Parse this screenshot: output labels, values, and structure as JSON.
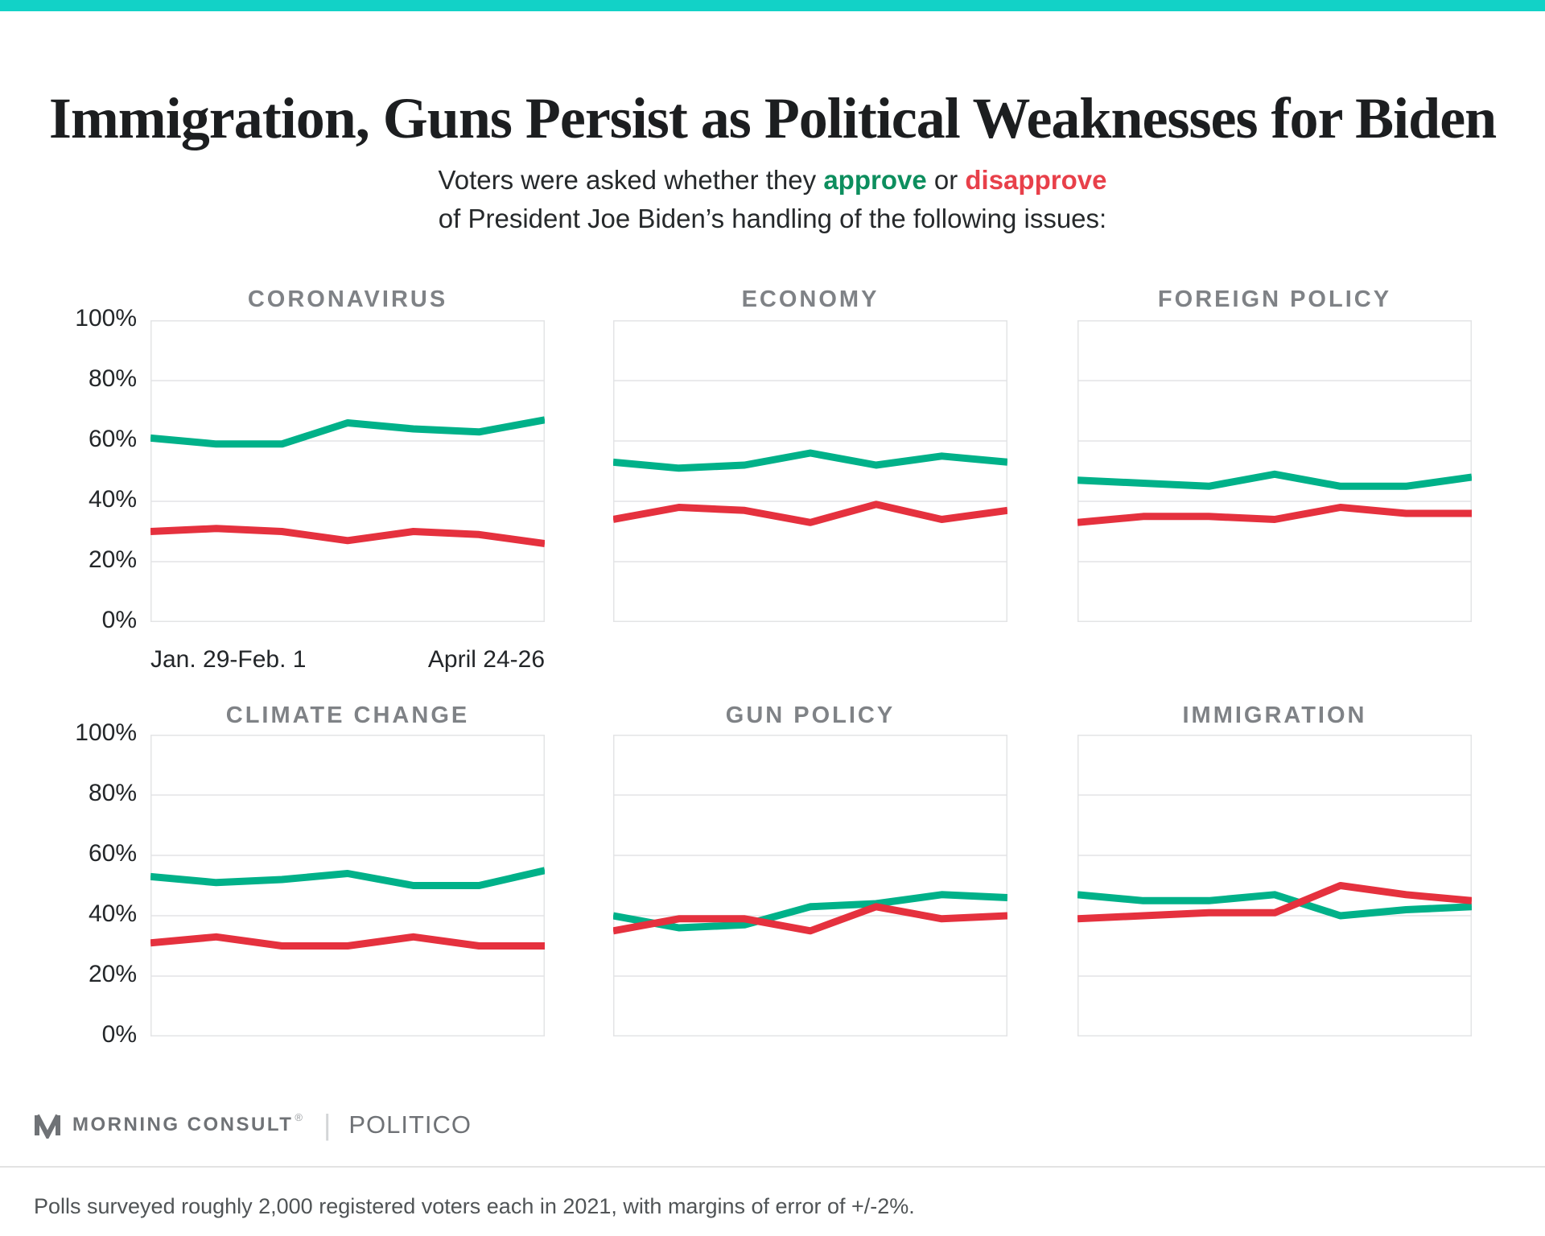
{
  "topbar_color": "#12d2c7",
  "title": "Immigration, Guns Persist as Political Weaknesses for Biden",
  "subtitle": {
    "line1_pre": "Voters were asked whether they ",
    "approve_word": "approve",
    "line1_mid": " or ",
    "disapprove_word": "disapprove",
    "line2": "of President Joe Biden’s handling of the following issues:"
  },
  "colors": {
    "approve": "#00b189",
    "disapprove": "#e5313e",
    "grid": "#e3e4e6",
    "chart_title": "#7f8286",
    "accent_bar": "#12d2c7"
  },
  "axes": {
    "y_ticks": [
      "100%",
      "80%",
      "60%",
      "40%",
      "20%",
      "0%"
    ],
    "x_tick_labels": [
      "Jan. 29-Feb. 1",
      "April 24-26"
    ]
  },
  "chart_data": [
    {
      "type": "line",
      "title": "CORONAVIRUS",
      "row": 0,
      "col": 0,
      "n_points": 7,
      "ylim": [
        0,
        100
      ],
      "grid": true,
      "y_tick_labels": [
        "100%",
        "80%",
        "60%",
        "40%",
        "20%",
        "0%"
      ],
      "x_tick_labels": [
        "Jan. 29-Feb. 1",
        "April 24-26"
      ],
      "series": [
        {
          "name": "approve",
          "values": [
            61,
            59,
            59,
            66,
            64,
            63,
            67
          ]
        },
        {
          "name": "disapprove",
          "values": [
            30,
            31,
            30,
            27,
            30,
            29,
            26
          ]
        }
      ]
    },
    {
      "type": "line",
      "title": "ECONOMY",
      "row": 0,
      "col": 1,
      "n_points": 7,
      "ylim": [
        0,
        100
      ],
      "grid": true,
      "series": [
        {
          "name": "approve",
          "values": [
            53,
            51,
            52,
            56,
            52,
            55,
            53
          ]
        },
        {
          "name": "disapprove",
          "values": [
            34,
            38,
            37,
            33,
            39,
            34,
            37
          ]
        }
      ]
    },
    {
      "type": "line",
      "title": "FOREIGN POLICY",
      "row": 0,
      "col": 2,
      "n_points": 7,
      "ylim": [
        0,
        100
      ],
      "grid": true,
      "series": [
        {
          "name": "approve",
          "values": [
            47,
            46,
            45,
            49,
            45,
            45,
            48
          ]
        },
        {
          "name": "disapprove",
          "values": [
            33,
            35,
            35,
            34,
            38,
            36,
            36
          ]
        }
      ]
    },
    {
      "type": "line",
      "title": "CLIMATE CHANGE",
      "row": 1,
      "col": 0,
      "n_points": 7,
      "ylim": [
        0,
        100
      ],
      "grid": true,
      "y_tick_labels": [
        "100%",
        "80%",
        "60%",
        "40%",
        "20%",
        "0%"
      ],
      "series": [
        {
          "name": "approve",
          "values": [
            53,
            51,
            52,
            54,
            50,
            50,
            55
          ]
        },
        {
          "name": "disapprove",
          "values": [
            31,
            33,
            30,
            30,
            33,
            30,
            30
          ]
        }
      ]
    },
    {
      "type": "line",
      "title": "GUN POLICY",
      "row": 1,
      "col": 1,
      "n_points": 7,
      "ylim": [
        0,
        100
      ],
      "grid": true,
      "series": [
        {
          "name": "approve",
          "values": [
            40,
            36,
            37,
            43,
            44,
            47,
            46
          ]
        },
        {
          "name": "disapprove",
          "values": [
            35,
            39,
            39,
            35,
            43,
            39,
            40
          ]
        }
      ]
    },
    {
      "type": "line",
      "title": "IMMIGRATION",
      "row": 1,
      "col": 2,
      "n_points": 7,
      "ylim": [
        0,
        100
      ],
      "grid": true,
      "series": [
        {
          "name": "approve",
          "values": [
            47,
            45,
            45,
            47,
            40,
            42,
            43
          ]
        },
        {
          "name": "disapprove",
          "values": [
            39,
            40,
            41,
            41,
            50,
            47,
            45
          ]
        }
      ]
    }
  ],
  "footer": {
    "brand": "MORNING CONSULT",
    "registered_mark": "®",
    "separator": "|",
    "partner": "POLITICO",
    "caption": "Polls surveyed roughly 2,000 registered voters each in 2021, with margins of error of +/-2%."
  }
}
